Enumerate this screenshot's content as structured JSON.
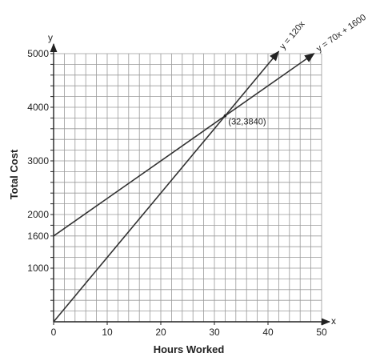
{
  "chart_data": {
    "type": "line",
    "xlabel": "Hours Worked",
    "ylabel": "Total Cost",
    "x_axis_letter": "x",
    "y_axis_letter": "y",
    "xlim": [
      0,
      50
    ],
    "ylim": [
      0,
      5000
    ],
    "x_ticks": [
      0,
      10,
      20,
      30,
      40,
      50
    ],
    "y_ticks": [
      1000,
      1600,
      2000,
      3000,
      4000,
      5000
    ],
    "x_minor_step": 2,
    "y_minor_step": 200,
    "grid": true,
    "series": [
      {
        "name": "y = 120x",
        "x": [
          0,
          42
        ],
        "y": [
          0,
          5040
        ]
      },
      {
        "name": "y = 70x + 1600",
        "x": [
          0,
          48.6
        ],
        "y": [
          1600,
          5002
        ]
      }
    ],
    "annotations": [
      {
        "text": "(32,3840)",
        "x": 32,
        "y": 3840
      }
    ],
    "colors": {
      "line": "#333333",
      "grid": "#9a9a9a",
      "axis": "#222222"
    }
  }
}
